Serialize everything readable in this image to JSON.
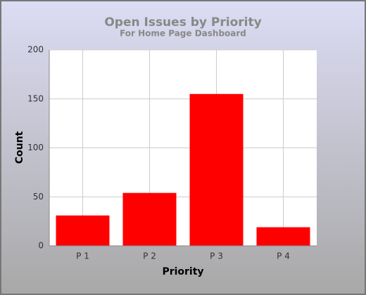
{
  "chart_data": {
    "type": "bar",
    "title": "Open Issues by Priority",
    "subtitle": "For Home Page Dashboard",
    "x_label": "Priority",
    "y_label": "Count",
    "categories": [
      "P 1",
      "P 2",
      "P 3",
      "P 4"
    ],
    "values": [
      31,
      54,
      155,
      19
    ],
    "color": "#ff0000",
    "ylim": [
      0,
      200
    ],
    "yticks": [
      0,
      50,
      100,
      150,
      200
    ],
    "grid": true
  }
}
